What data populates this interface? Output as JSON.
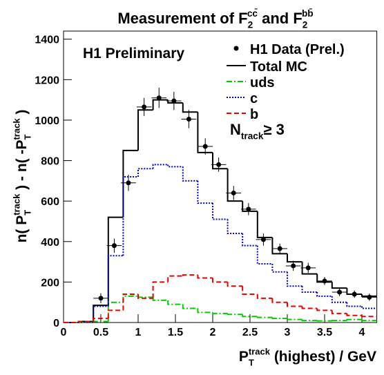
{
  "chart_data": {
    "type": "histogram",
    "title_segments": [
      {
        "t": "Measurement of F"
      },
      {
        "t": "2",
        "pos": "sub"
      },
      {
        "t": "cc̄",
        "pos": "sup"
      },
      {
        "t": " and F"
      },
      {
        "t": "2",
        "pos": "sub"
      },
      {
        "t": "bb̄",
        "pos": "sup"
      }
    ],
    "xlabel_segments": [
      {
        "t": "P"
      },
      {
        "t": "T",
        "pos": "sub"
      },
      {
        "t": "track",
        "pos": "sup"
      },
      {
        "t": " (highest)  / GeV"
      }
    ],
    "ylabel_segments": [
      {
        "t": "n( P"
      },
      {
        "t": "T",
        "pos": "sub"
      },
      {
        "t": "track",
        "pos": "sup"
      },
      {
        "t": " ) - n( -P"
      },
      {
        "t": "T",
        "pos": "sub"
      },
      {
        "t": "track",
        "pos": "sup"
      },
      {
        "t": " )"
      }
    ],
    "annotations": [
      {
        "segments": [
          {
            "t": "H1 Preliminary"
          }
        ]
      },
      {
        "segments": [
          {
            "t": "N"
          },
          {
            "t": "track",
            "pos": "sub"
          },
          {
            "t": "≥ 3"
          }
        ]
      }
    ],
    "xlim": [
      0,
      4.2
    ],
    "ylim": [
      0,
      1440
    ],
    "xticks": [
      0,
      0.5,
      1,
      1.5,
      2,
      2.5,
      3,
      3.5,
      4
    ],
    "yticks": [
      0,
      200,
      400,
      600,
      800,
      1000,
      1200,
      1400
    ],
    "bins": [
      0,
      0.2,
      0.4,
      0.6,
      0.8,
      1.0,
      1.2,
      1.4,
      1.6,
      1.8,
      2.0,
      2.2,
      2.4,
      2.6,
      2.8,
      3.0,
      3.2,
      3.4,
      3.6,
      3.8,
      4.0,
      4.2
    ],
    "data": {
      "name": "H1 Data (Prel.)",
      "color": "#000000",
      "x": [
        0.5,
        0.68,
        0.87,
        1.08,
        1.28,
        1.48,
        1.68,
        1.9,
        2.08,
        2.28,
        2.48,
        2.68,
        2.9,
        3.08,
        3.28,
        3.5,
        3.7,
        3.9,
        4.1
      ],
      "values": [
        120,
        380,
        690,
        1065,
        1110,
        1095,
        1005,
        870,
        780,
        640,
        560,
        410,
        365,
        280,
        270,
        205,
        150,
        140,
        125
      ],
      "errors": [
        25,
        35,
        40,
        45,
        50,
        45,
        45,
        40,
        35,
        35,
        30,
        30,
        25,
        25,
        25,
        20,
        20,
        18,
        18
      ],
      "xerr": 0.1
    },
    "series": [
      {
        "name": "Total MC",
        "color": "#000000",
        "dash": "none",
        "values": [
          0,
          5,
          85,
          520,
          850,
          1050,
          1100,
          1085,
          1040,
          840,
          760,
          600,
          550,
          420,
          340,
          300,
          240,
          200,
          170,
          140,
          130
        ]
      },
      {
        "name": "uds",
        "color": "#00cc00",
        "dash": "8,3,2,3",
        "values": [
          0,
          0,
          5,
          100,
          130,
          125,
          110,
          90,
          70,
          50,
          45,
          40,
          30,
          25,
          20,
          15,
          10,
          8,
          10,
          15,
          10
        ]
      },
      {
        "name": "c",
        "color": "#0000cc",
        "dash": "2,2",
        "values": [
          0,
          2,
          80,
          330,
          720,
          760,
          780,
          770,
          700,
          590,
          510,
          440,
          380,
          290,
          250,
          180,
          150,
          130,
          100,
          80,
          70
        ]
      },
      {
        "name": "b",
        "color": "#ee0000",
        "dash": "7,4",
        "values": [
          0,
          5,
          20,
          60,
          140,
          120,
          200,
          230,
          235,
          220,
          200,
          180,
          140,
          120,
          100,
          80,
          70,
          60,
          45,
          35,
          30
        ]
      }
    ]
  }
}
